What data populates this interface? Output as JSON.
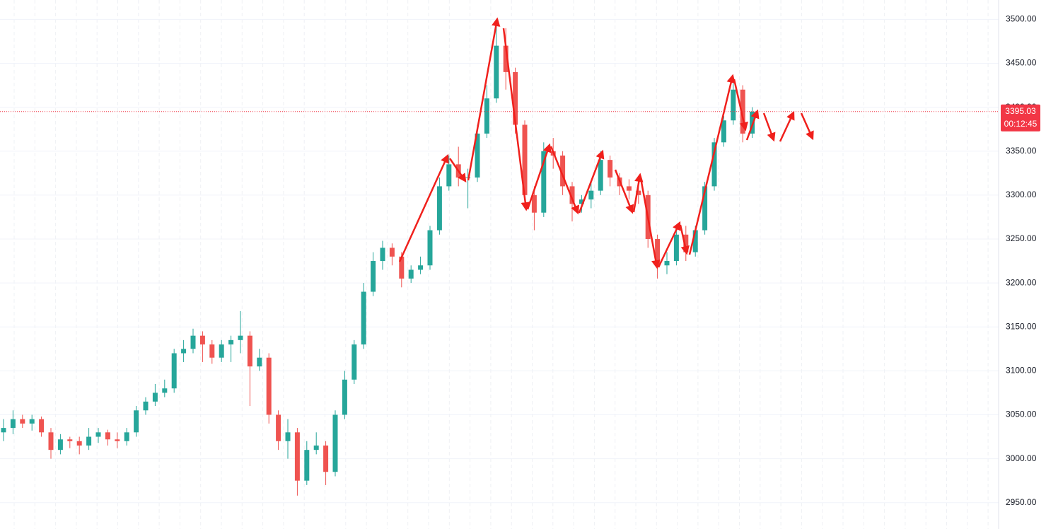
{
  "chart_data": {
    "type": "candlestick",
    "open": [
      3030,
      3035,
      3045,
      3040,
      3045,
      3030,
      3010,
      3022,
      3020,
      3015,
      3025,
      3030,
      3022,
      3020,
      3030,
      3055,
      3065,
      3075,
      3080,
      3120,
      3125,
      3140,
      3130,
      3115,
      3130,
      3135,
      3140,
      3105,
      3115,
      3050,
      3020,
      3030,
      2975,
      3010,
      3015,
      2985,
      3050,
      3090,
      3130,
      3190,
      3225,
      3240,
      3230,
      3205,
      3215,
      3220,
      3260,
      3310,
      3335,
      3320,
      3320,
      3370,
      3410,
      3470,
      3440,
      3380,
      3300,
      3280,
      3350,
      3345,
      3310,
      3290,
      3295,
      3305,
      3340,
      3320,
      3310,
      3305,
      3300,
      3250,
      3220,
      3225,
      3255,
      3235,
      3260,
      3310,
      3360,
      3385,
      3420,
      3370
    ],
    "high": [
      3045,
      3055,
      3050,
      3050,
      3048,
      3035,
      3028,
      3025,
      3025,
      3035,
      3035,
      3033,
      3030,
      3035,
      3060,
      3070,
      3085,
      3090,
      3125,
      3135,
      3148,
      3145,
      3135,
      3135,
      3140,
      3168,
      3145,
      3125,
      3120,
      3055,
      3045,
      3035,
      3020,
      3030,
      3020,
      3055,
      3100,
      3135,
      3200,
      3235,
      3248,
      3245,
      3235,
      3220,
      3230,
      3265,
      3320,
      3345,
      3355,
      3330,
      3380,
      3425,
      3500,
      3490,
      3445,
      3385,
      3310,
      3360,
      3365,
      3350,
      3315,
      3300,
      3315,
      3350,
      3345,
      3325,
      3318,
      3310,
      3305,
      3255,
      3235,
      3260,
      3265,
      3265,
      3315,
      3365,
      3390,
      3430,
      3425,
      3400
    ],
    "low": [
      3020,
      3028,
      3035,
      3032,
      3025,
      3000,
      3005,
      3012,
      3005,
      3010,
      3018,
      3015,
      3012,
      3015,
      3025,
      3050,
      3060,
      3070,
      3075,
      3110,
      3120,
      3110,
      3108,
      3110,
      3110,
      3120,
      3060,
      3100,
      3040,
      3010,
      3000,
      2958,
      2970,
      3005,
      2970,
      2980,
      3045,
      3085,
      3125,
      3185,
      3215,
      3220,
      3195,
      3200,
      3210,
      3215,
      3255,
      3305,
      3310,
      3285,
      3315,
      3365,
      3405,
      3420,
      3370,
      3290,
      3260,
      3275,
      3330,
      3300,
      3270,
      3280,
      3285,
      3300,
      3310,
      3300,
      3295,
      3290,
      3240,
      3205,
      3210,
      3220,
      3225,
      3230,
      3255,
      3305,
      3355,
      3380,
      3360,
      3365
    ],
    "close": [
      3035,
      3045,
      3040,
      3045,
      3030,
      3010,
      3022,
      3020,
      3015,
      3025,
      3030,
      3022,
      3020,
      3030,
      3055,
      3065,
      3075,
      3080,
      3120,
      3125,
      3140,
      3130,
      3115,
      3130,
      3135,
      3140,
      3105,
      3115,
      3050,
      3020,
      3030,
      2975,
      3010,
      3015,
      2985,
      3050,
      3090,
      3130,
      3190,
      3225,
      3240,
      3230,
      3205,
      3215,
      3220,
      3260,
      3310,
      3335,
      3320,
      3320,
      3370,
      3410,
      3470,
      3440,
      3380,
      3300,
      3280,
      3350,
      3345,
      3310,
      3290,
      3295,
      3305,
      3340,
      3320,
      3310,
      3305,
      3300,
      3250,
      3220,
      3225,
      3255,
      3235,
      3260,
      3310,
      3360,
      3385,
      3420,
      3370,
      3395.03
    ],
    "up_color": "#26a69a",
    "down_color": "#ef5350",
    "last_price": 3395.03,
    "countdown": "00:12:45",
    "price_line_color": "#f23645",
    "ylim": [
      2920,
      3522
    ],
    "yticks": [
      {
        "value": 2950,
        "label": "2950.00"
      },
      {
        "value": 3000,
        "label": "3000.00"
      },
      {
        "value": 3050,
        "label": "3050.00"
      },
      {
        "value": 3100,
        "label": "3100.00"
      },
      {
        "value": 3150,
        "label": "3150.00"
      },
      {
        "value": 3200,
        "label": "3200.00"
      },
      {
        "value": 3250,
        "label": "3250.00"
      },
      {
        "value": 3300,
        "label": "3300.00"
      },
      {
        "value": 3350,
        "label": "3350.00"
      },
      {
        "value": 3400,
        "label": "3400.00"
      },
      {
        "value": 3450,
        "label": "3450.00"
      },
      {
        "value": 3500,
        "label": "3500.00"
      }
    ],
    "grid": true
  }
}
